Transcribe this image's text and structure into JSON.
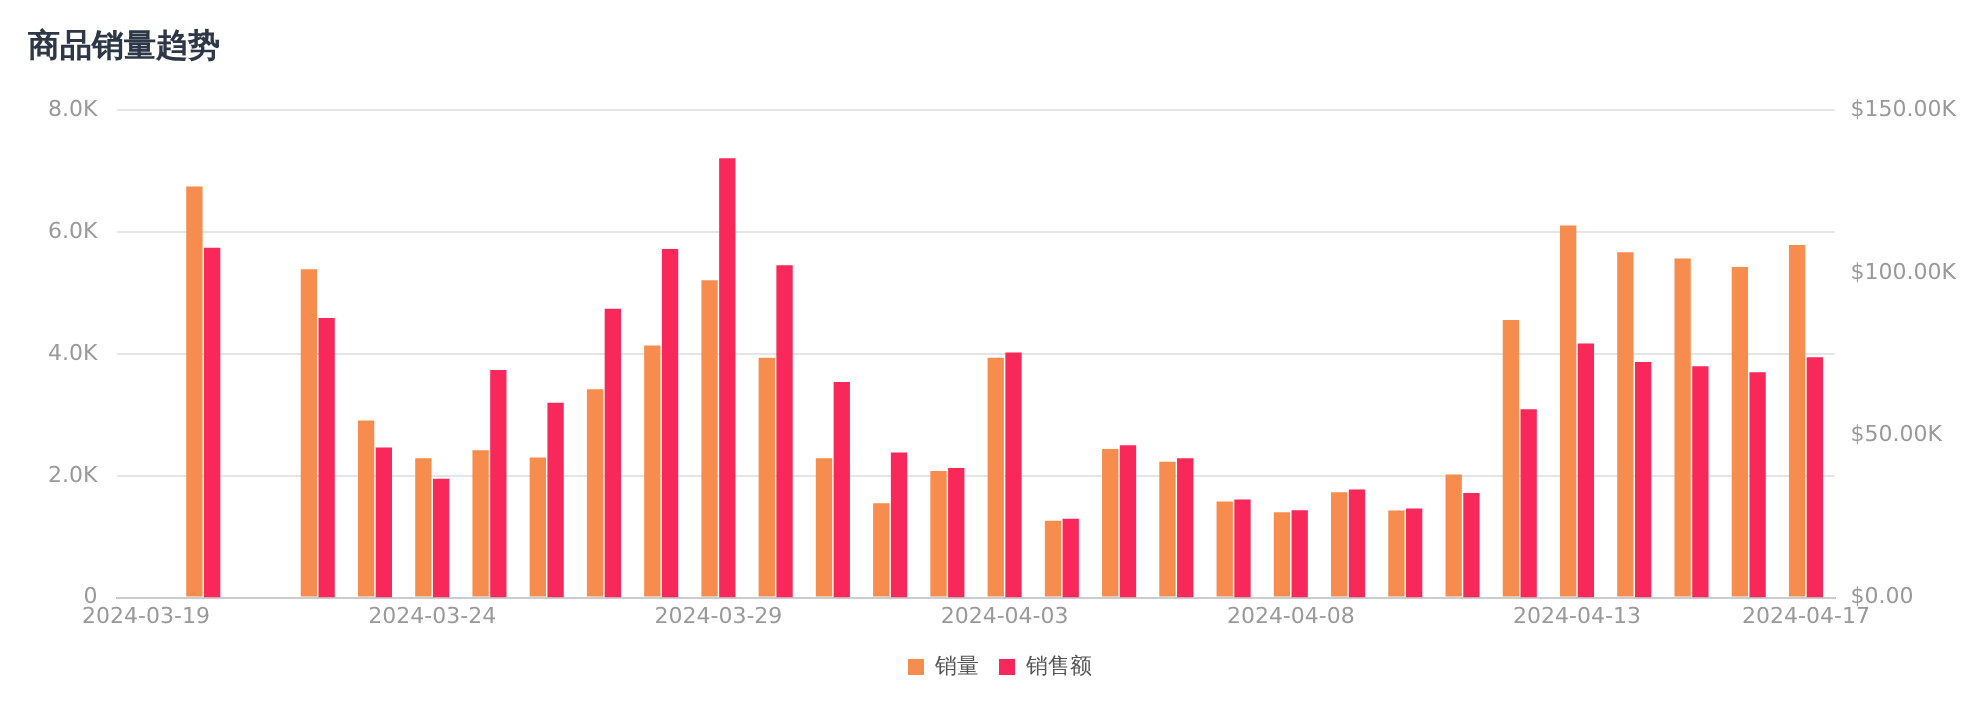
{
  "chart_data": {
    "type": "bar",
    "title": "商品销量趋势",
    "x": [
      "2024-03-20",
      "2024-03-22",
      "2024-03-23",
      "2024-03-24",
      "2024-03-25",
      "2024-03-26",
      "2024-03-27",
      "2024-03-28",
      "2024-03-29",
      "2024-03-30",
      "2024-03-31",
      "2024-04-01",
      "2024-04-02",
      "2024-04-03",
      "2024-04-04",
      "2024-04-05",
      "2024-04-06",
      "2024-04-07",
      "2024-04-08",
      "2024-04-09",
      "2024-04-10",
      "2024-04-11",
      "2024-04-12",
      "2024-04-13",
      "2024-04-14",
      "2024-04-15",
      "2024-04-16",
      "2024-04-17"
    ],
    "series": [
      {
        "name": "销量",
        "color": "#f68c4d",
        "values": [
          6750,
          5390,
          2910,
          2290,
          2420,
          2300,
          3420,
          4140,
          5210,
          3940,
          2290,
          1550,
          2080,
          3940,
          1260,
          2440,
          2230,
          1580,
          1400,
          1730,
          1430,
          2020,
          4560,
          6110,
          5670,
          5570,
          5430,
          5790
        ]
      },
      {
        "name": "销售额",
        "color": "#f8295a",
        "axis": "y2",
        "values": [
          107700,
          86100,
          46200,
          36600,
          70100,
          60000,
          88900,
          107300,
          135300,
          102300,
          66400,
          44700,
          39900,
          75500,
          24300,
          46900,
          42900,
          30200,
          26900,
          33300,
          27400,
          32200,
          58000,
          78200,
          72500,
          71200,
          69400,
          74000
        ]
      }
    ],
    "xlim": [
      "2024-03-18T12:00",
      "2024-04-17T12:00"
    ],
    "xticks": [
      {
        "value": "2024-03-19",
        "label": "2024-03-19"
      },
      {
        "value": "2024-03-24",
        "label": "2024-03-24"
      },
      {
        "value": "2024-03-29",
        "label": "2024-03-29"
      },
      {
        "value": "2024-04-03",
        "label": "2024-04-03"
      },
      {
        "value": "2024-04-08",
        "label": "2024-04-08"
      },
      {
        "value": "2024-04-13",
        "label": "2024-04-13"
      },
      {
        "value": "2024-04-17",
        "label": "2024-04-17"
      }
    ],
    "ylim": [
      0,
      8000
    ],
    "yticks": [
      0,
      {
        "value": 2000,
        "label": "2.0K"
      },
      {
        "value": 4000,
        "label": "4.0K"
      },
      {
        "value": 6000,
        "label": "6.0K"
      },
      {
        "value": 8000,
        "label": "8.0K"
      }
    ],
    "y2lim": [
      0,
      150000
    ],
    "y2ticks": [
      {
        "value": 0,
        "label": "$0.00"
      },
      {
        "value": 50000,
        "label": "$50.00K"
      },
      {
        "value": 100000,
        "label": "$100.00K"
      },
      {
        "value": 150000,
        "label": "$150.00K"
      }
    ],
    "grid": "y",
    "legend": "bottom"
  }
}
